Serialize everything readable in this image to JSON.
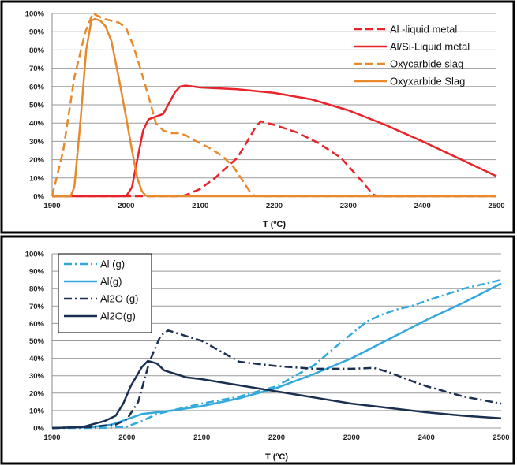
{
  "chart_data": [
    {
      "type": "line",
      "xlabel": "T (ºC)",
      "xlim": [
        1900,
        2500
      ],
      "ylim": [
        0,
        100
      ],
      "xticks": [
        "1900",
        "2000",
        "2100",
        "2200",
        "2300",
        "2400",
        "2500"
      ],
      "yticks": [
        "0%",
        "10%",
        "20%",
        "30%",
        "40%",
        "50%",
        "60%",
        "70%",
        "80%",
        "90%",
        "100%"
      ],
      "grid": true,
      "legend_position": "top-right",
      "series": [
        {
          "name": "Al -liquid metal",
          "color": "#e8232a",
          "style": "dashed",
          "x": [
            1900,
            2070,
            2080,
            2100,
            2120,
            2150,
            2165,
            2175,
            2182,
            2200,
            2230,
            2260,
            2290,
            2310,
            2325,
            2333,
            2340,
            2500
          ],
          "y": [
            0,
            0,
            0.5,
            4,
            10,
            21,
            31,
            38,
            41,
            39,
            35,
            29,
            21,
            12,
            5,
            1,
            0,
            0
          ]
        },
        {
          "name": "Al/Si-Liquid metal",
          "color": "#e8232a",
          "style": "solid",
          "x": [
            1900,
            2000,
            2008,
            2015,
            2023,
            2030,
            2040,
            2050,
            2058,
            2066,
            2073,
            2080,
            2090,
            2100,
            2150,
            2200,
            2250,
            2300,
            2350,
            2400,
            2450,
            2500
          ],
          "y": [
            0,
            0,
            5,
            20,
            36,
            42,
            43.5,
            45,
            51,
            57,
            60,
            60.5,
            60,
            59.5,
            58.5,
            56.5,
            53,
            47,
            39,
            30,
            20.5,
            11
          ]
        },
        {
          "name": "Oxycarbide slag",
          "color": "#e88a2b",
          "style": "dashed",
          "x": [
            1900,
            1915,
            1930,
            1945,
            1955,
            1970,
            1990,
            2000,
            2010,
            2022,
            2032,
            2040,
            2050,
            2060,
            2070,
            2080,
            2090,
            2110,
            2130,
            2145,
            2155,
            2163,
            2168,
            2172,
            2180,
            2500
          ],
          "y": [
            0,
            25,
            65,
            90,
            100,
            97,
            95,
            92,
            82,
            66,
            52,
            40,
            36,
            34.5,
            34.5,
            33.5,
            31,
            27,
            22,
            16,
            10,
            5,
            2,
            0.5,
            0,
            0
          ]
        },
        {
          "name": "Oxyxarbide Slag",
          "color": "#e88a2b",
          "style": "solid",
          "x": [
            1900,
            1925,
            1930,
            1938,
            1946,
            1953,
            1958,
            1965,
            1972,
            1980,
            1990,
            2000,
            2008,
            2015,
            2021,
            2026,
            2030,
            2500
          ],
          "y": [
            0,
            0,
            5,
            40,
            80,
            96,
            97,
            96,
            93,
            85,
            65,
            43,
            25,
            10,
            3,
            0.5,
            0,
            0
          ]
        }
      ]
    },
    {
      "type": "line",
      "xlabel": "T (ºC)",
      "xlim": [
        1900,
        2500
      ],
      "ylim": [
        0,
        100
      ],
      "xticks": [
        "1900",
        "2000",
        "2100",
        "2200",
        "2300",
        "2400",
        "2500"
      ],
      "yticks": [
        "0%",
        "10%",
        "20%",
        "30%",
        "40%",
        "50%",
        "60%",
        "70%",
        "80%",
        "90%",
        "100%"
      ],
      "grid": true,
      "legend_position": "top-left",
      "series": [
        {
          "name": "Al (g)",
          "color": "#31a9dd",
          "style": "dashdot",
          "x": [
            1900,
            1950,
            1980,
            2000,
            2020,
            2040,
            2070,
            2100,
            2150,
            2200,
            2250,
            2280,
            2300,
            2320,
            2340,
            2360,
            2380,
            2400,
            2450,
            2500
          ],
          "y": [
            0,
            0,
            0.2,
            0.8,
            4,
            8,
            11,
            14,
            18,
            24,
            36,
            47,
            54,
            61,
            65,
            68,
            70,
            73,
            80,
            85
          ]
        },
        {
          "name": "Al(g)",
          "color": "#31a9dd",
          "style": "solid",
          "x": [
            1900,
            1950,
            1980,
            2000,
            2020,
            2040,
            2060,
            2100,
            2150,
            2200,
            2250,
            2300,
            2350,
            2400,
            2450,
            2500
          ],
          "y": [
            0,
            0.5,
            2,
            5,
            8,
            9,
            10,
            12.5,
            17,
            23,
            31,
            40,
            51,
            62,
            72,
            83
          ]
        },
        {
          "name": "Al2O (g)",
          "color": "#1b3050",
          "style": "dashdot",
          "x": [
            1900,
            1950,
            1985,
            2000,
            2015,
            2030,
            2045,
            2055,
            2070,
            2100,
            2150,
            2200,
            2250,
            2300,
            2330,
            2350,
            2380,
            2400,
            2450,
            2500
          ],
          "y": [
            0,
            0.5,
            2,
            5,
            15,
            38,
            53,
            56,
            54,
            50,
            38,
            35.5,
            34,
            34,
            34.5,
            32,
            27,
            24,
            18,
            14
          ]
        },
        {
          "name": "Al2O(g)",
          "color": "#1b3050",
          "style": "solid",
          "x": [
            1900,
            1940,
            1970,
            1985,
            1995,
            2005,
            2020,
            2028,
            2040,
            2050,
            2065,
            2080,
            2100,
            2150,
            2200,
            2250,
            2300,
            2350,
            2400,
            2450,
            2500
          ],
          "y": [
            0,
            0.5,
            4,
            7,
            14,
            24,
            35,
            38.5,
            37,
            33,
            31,
            29,
            28,
            24.5,
            21,
            17.5,
            14,
            11.5,
            9,
            7,
            5.5
          ]
        }
      ]
    }
  ]
}
